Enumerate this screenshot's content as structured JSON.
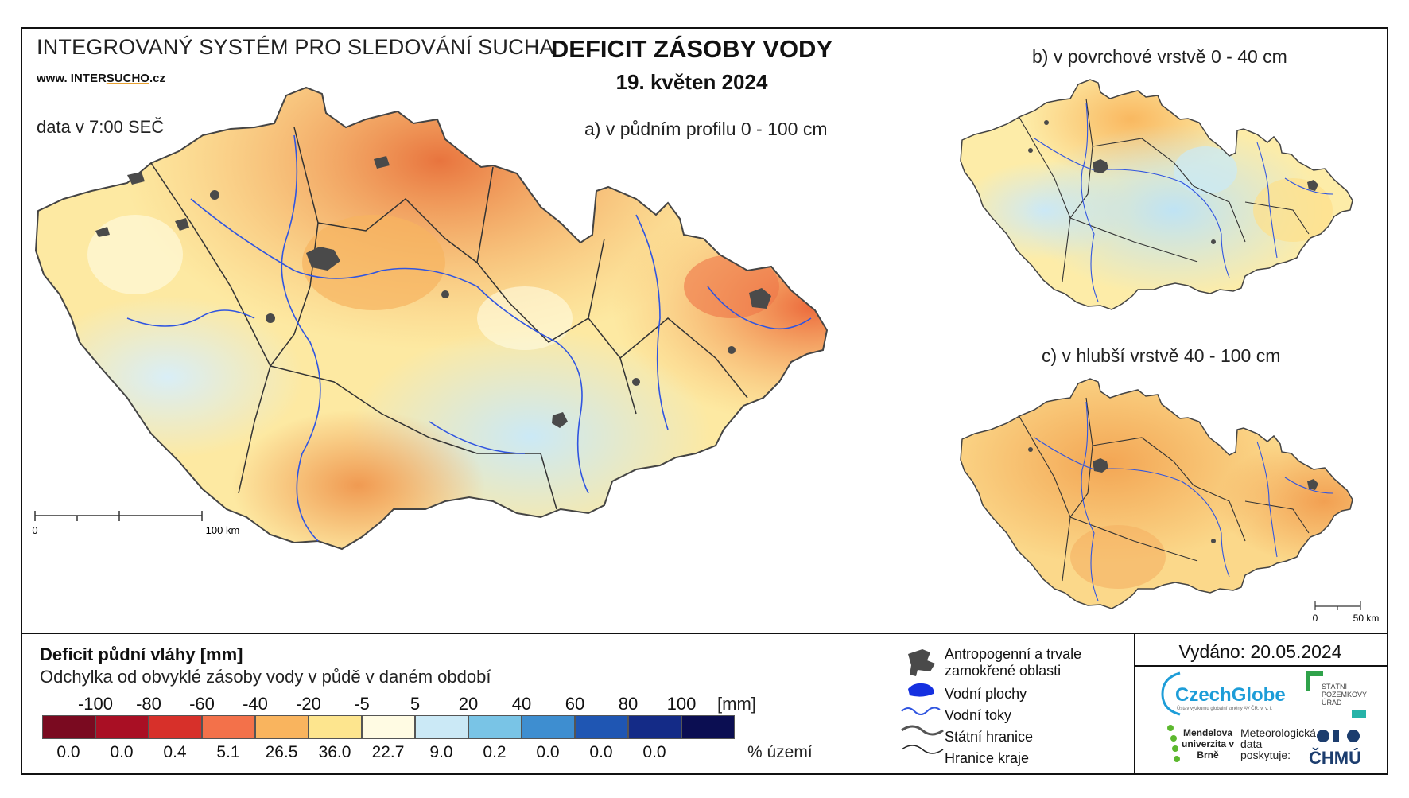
{
  "header": {
    "system_title": "INTEGROVANÝ SYSTÉM PRO SLEDOVÁNÍ SUCHA",
    "website_prefix": "www. INTER",
    "website_highlight": "SUCHO",
    "website_suffix": ".cz",
    "data_time": "data v 7:00 SEČ",
    "main_title": "DEFICIT ZÁSOBY VODY",
    "main_date": "19. květen 2024"
  },
  "maps": {
    "a_label": "a) v půdním profilu 0 - 100 cm",
    "b_label": "b) v povrchové vrstvě 0 - 40 cm",
    "c_label": "c) v hlubší vrstvě 40 - 100 cm",
    "scale_main": {
      "start": "0",
      "end": "100 km"
    },
    "scale_small": {
      "start": "0",
      "end": "50 km"
    }
  },
  "legend": {
    "title": "Deficit půdní vláhy  [mm]",
    "subtitle": "Odchylka od obvyklé zásoby vody v půdě v daném období",
    "unit": "[mm]",
    "percent_unit": "% území",
    "ticks": [
      "-100",
      "-80",
      "-60",
      "-40",
      "-20",
      "-5",
      "5",
      "20",
      "40",
      "60",
      "80",
      "100"
    ],
    "classes": [
      {
        "color": "#7a0a20",
        "percent": "0.0"
      },
      {
        "color": "#a90f24",
        "percent": "0.0"
      },
      {
        "color": "#d7302a",
        "percent": "0.4"
      },
      {
        "color": "#f3714a",
        "percent": "5.1"
      },
      {
        "color": "#f9b45e",
        "percent": "26.5"
      },
      {
        "color": "#fde58e",
        "percent": "36.0"
      },
      {
        "color": "#fffbe3",
        "percent": "22.7"
      },
      {
        "color": "#cbe9f6",
        "percent": "9.0"
      },
      {
        "color": "#79c4e6",
        "percent": "0.2"
      },
      {
        "color": "#3e8ed0",
        "percent": "0.0"
      },
      {
        "color": "#1f56b3",
        "percent": "0.0"
      },
      {
        "color": "#142b87",
        "percent": "0.0"
      },
      {
        "color": "#0b0e52",
        "percent": ""
      }
    ]
  },
  "symbols": {
    "anthropogenic": "Antropogenní a trvale zamokřené oblasti",
    "water_bodies": "Vodní plochy",
    "water_courses": "Vodní toky",
    "state_border": "Státní hranice",
    "region_border": "Hranice kraje"
  },
  "footer": {
    "issued": "Vydáno: 20.05.2024",
    "czechglobe": "CzechGlobe",
    "czechglobe_sub": "Ústav výzkumu globální změny AV ČR, v. v. i.",
    "spu": "STÁTNÍ POZEMKOVÝ ÚŘAD",
    "mendelu": "Mendelova univerzita v Brně",
    "met_data": "Meteorologická data poskytuje:",
    "chmu": "ČHMÚ"
  }
}
